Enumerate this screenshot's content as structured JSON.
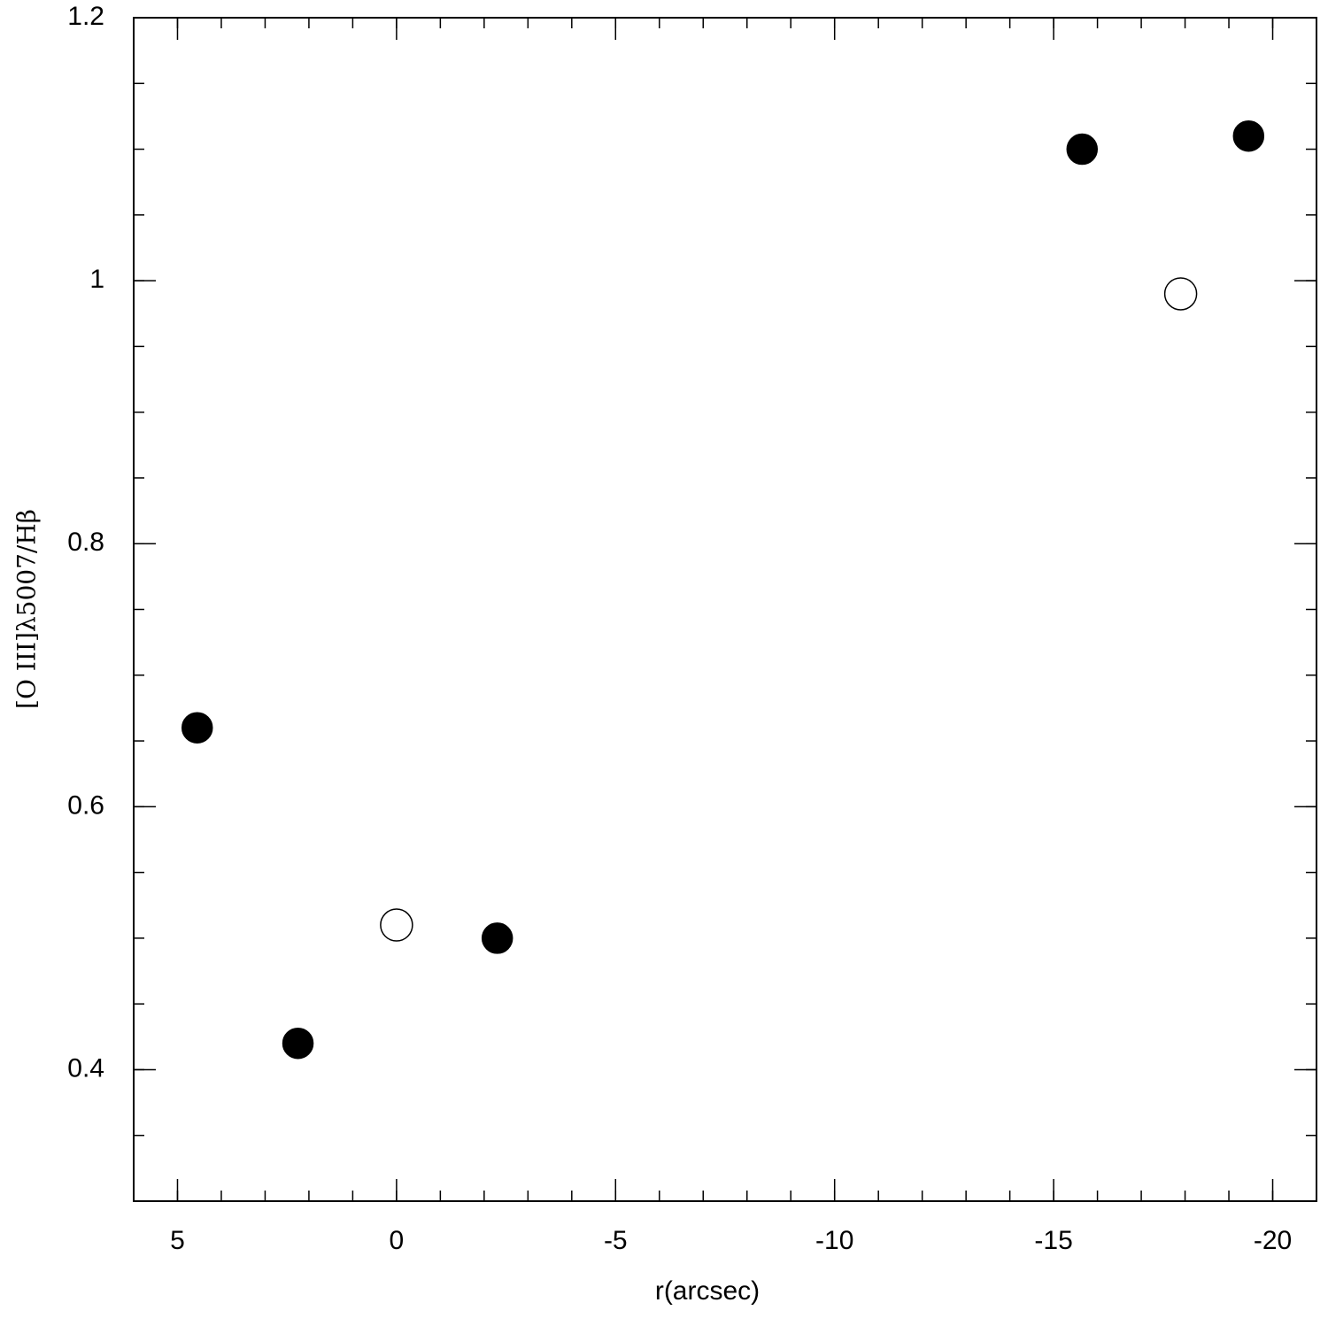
{
  "chart_data": {
    "type": "scatter",
    "xlabel": "r(arcsec)",
    "ylabel": "[O III]λ5007/Hβ",
    "xlim": [
      6,
      -21
    ],
    "xticks": [
      5,
      0,
      -5,
      -10,
      -15,
      -20
    ],
    "xminor": 1,
    "ylim": [
      0.3,
      1.2
    ],
    "yticks": [
      0.4,
      0.6,
      0.8,
      1,
      1.2
    ],
    "yminor": 0.05,
    "series": [
      {
        "color": "#000000",
        "marker": "filled",
        "x": [
          4.55,
          2.25,
          -2.3,
          -15.65,
          -19.45
        ],
        "values": [
          0.66,
          0.42,
          0.5,
          1.1,
          1.11
        ]
      },
      {
        "color": "#000000",
        "marker": "open",
        "x": [
          0,
          -17.9
        ],
        "values": [
          0.51,
          0.99
        ]
      }
    ]
  }
}
